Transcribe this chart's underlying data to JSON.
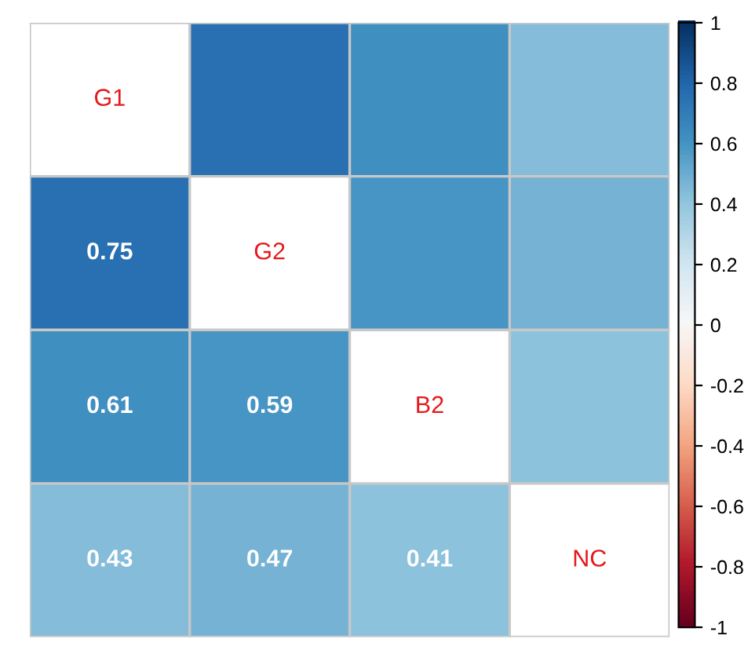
{
  "chart_data": {
    "type": "heatmap",
    "categories": [
      null,
      null,
      null,
      null
    ],
    "y_categories": [
      null,
      null,
      null,
      null
    ],
    "cells": [
      [
        null,
        0.75,
        0.61,
        0.43
      ],
      [
        0.75,
        null,
        0.59,
        0.47
      ],
      [
        0.61,
        0.59,
        null,
        0.41
      ],
      [
        0.43,
        0.47,
        0.41,
        null
      ]
    ],
    "cell_labels": [
      [
        "G1",
        null,
        null,
        null
      ],
      [
        "0.75",
        "G2",
        null,
        null
      ],
      [
        "0.61",
        "0.59",
        "B2",
        null
      ],
      [
        "0.43",
        "0.47",
        "0.41",
        "NC"
      ]
    ],
    "clim": [
      -1,
      1
    ],
    "cticks": [
      -1,
      -0.8,
      -0.6,
      -0.4,
      -0.2,
      0,
      0.2,
      0.4,
      0.6,
      0.8,
      1
    ]
  }
}
